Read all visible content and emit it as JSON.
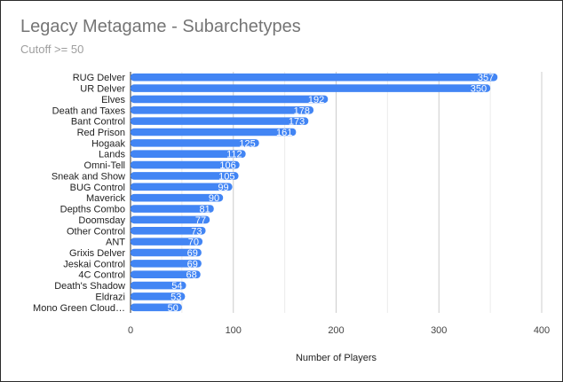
{
  "chart_data": {
    "type": "bar",
    "orientation": "horizontal",
    "title": "Legacy Metagame - Subarchetypes",
    "subtitle": "Cutoff >= 50",
    "xlabel": "Number of Players",
    "ylabel": "",
    "xlim": [
      0,
      400
    ],
    "xticks": [
      0,
      100,
      200,
      300,
      400
    ],
    "grid": true,
    "legend": "none",
    "bar_color": "#4285f4",
    "categories": [
      "RUG Delver",
      "UR Delver",
      "Elves",
      "Death and Taxes",
      "Bant Control",
      "Red Prison",
      "Hogaak",
      "Lands",
      "Omni-Tell",
      "Sneak and Show",
      "BUG Control",
      "Maverick",
      "Depths Combo",
      "Doomsday",
      "Other Control",
      "ANT",
      "Grixis Delver",
      "Jeskai Control",
      "4C Control",
      "Death's Shadow",
      "Eldrazi",
      "Mono Green Cloud…"
    ],
    "values": [
      357,
      350,
      192,
      178,
      173,
      161,
      125,
      112,
      106,
      105,
      99,
      90,
      81,
      77,
      73,
      70,
      69,
      69,
      68,
      54,
      53,
      50
    ]
  }
}
